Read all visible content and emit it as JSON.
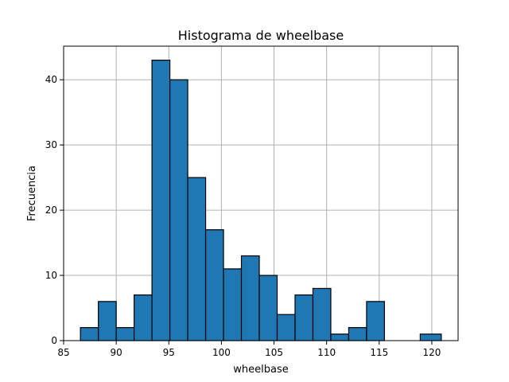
{
  "chart_data": {
    "type": "bar",
    "title": "Histograma de wheelbase",
    "xlabel": "wheelbase",
    "ylabel": "Frecuencia",
    "bins": [
      {
        "x0": 86.6,
        "x1": 88.3,
        "value": 2
      },
      {
        "x0": 88.3,
        "x1": 90.0,
        "value": 6
      },
      {
        "x0": 90.0,
        "x1": 91.7,
        "value": 2
      },
      {
        "x0": 91.7,
        "x1": 93.4,
        "value": 7
      },
      {
        "x0": 93.4,
        "x1": 95.1,
        "value": 43
      },
      {
        "x0": 95.1,
        "x1": 96.8,
        "value": 40
      },
      {
        "x0": 96.8,
        "x1": 98.5,
        "value": 25
      },
      {
        "x0": 98.5,
        "x1": 100.2,
        "value": 17
      },
      {
        "x0": 100.2,
        "x1": 101.9,
        "value": 11
      },
      {
        "x0": 101.9,
        "x1": 103.6,
        "value": 13
      },
      {
        "x0": 103.6,
        "x1": 105.3,
        "value": 10
      },
      {
        "x0": 105.3,
        "x1": 107.0,
        "value": 4
      },
      {
        "x0": 107.0,
        "x1": 108.7,
        "value": 7
      },
      {
        "x0": 108.7,
        "x1": 110.4,
        "value": 8
      },
      {
        "x0": 110.4,
        "x1": 112.1,
        "value": 1
      },
      {
        "x0": 112.1,
        "x1": 113.8,
        "value": 2
      },
      {
        "x0": 113.8,
        "x1": 115.5,
        "value": 6
      },
      {
        "x0": 115.5,
        "x1": 117.2,
        "value": 0
      },
      {
        "x0": 117.2,
        "x1": 118.9,
        "value": 0
      },
      {
        "x0": 118.9,
        "x1": 120.9,
        "value": 1
      }
    ],
    "xlim": [
      85.0,
      122.5
    ],
    "ylim": [
      0,
      45.15
    ],
    "xticks": [
      85,
      90,
      95,
      100,
      105,
      110,
      115,
      120
    ],
    "yticks": [
      0,
      10,
      20,
      30,
      40
    ],
    "grid": true,
    "bar_color": "#1f77b4",
    "edge_color": "#000000"
  }
}
